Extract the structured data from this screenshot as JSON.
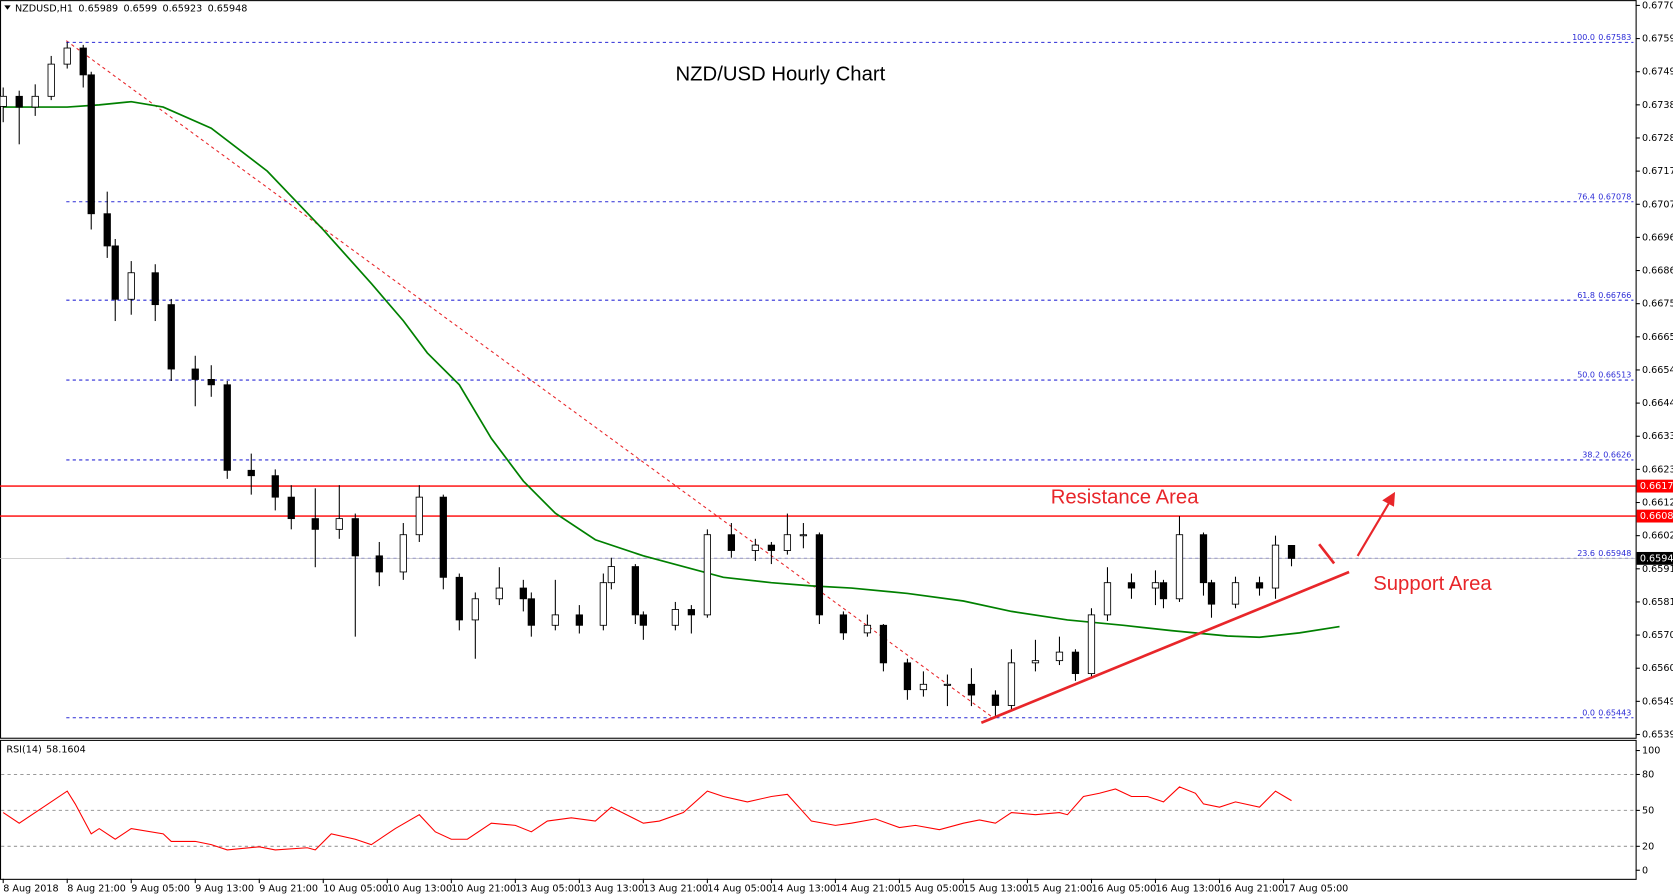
{
  "header": {
    "symbol": "NZDUSD,H1",
    "ohlc": [
      0.65989,
      0.6599,
      0.65923,
      0.65948
    ]
  },
  "chart_data": [
    {
      "type": "candlestick",
      "title": "NZD/USD Hourly Chart",
      "annotations": [
        "Resistance Area",
        "Support Area"
      ],
      "up_color": "#ffffff",
      "down_color": "#000000",
      "x": [
        0,
        2,
        4,
        6,
        8,
        10,
        11,
        13,
        14,
        16,
        19,
        21,
        24,
        26,
        28,
        31,
        34,
        36,
        39,
        42,
        44,
        47,
        50,
        52,
        55,
        57,
        59,
        62,
        65,
        66,
        69,
        72,
        75,
        76,
        79,
        80,
        84,
        86,
        88,
        91,
        94,
        96,
        98,
        100,
        102,
        105,
        108,
        110,
        113,
        115,
        118,
        121,
        124,
        126,
        129,
        132,
        134,
        136,
        138,
        141,
        144,
        145,
        147,
        150,
        151,
        154,
        157,
        159,
        161
      ],
      "open": [
        0.6738,
        0.67412,
        0.67378,
        0.67412,
        0.67514,
        0.67565,
        0.6748,
        0.6704,
        0.66938,
        0.66769,
        0.66853,
        0.66752,
        0.66548,
        0.66515,
        0.66498,
        0.66227,
        0.6621,
        0.66142,
        0.66074,
        0.6604,
        0.66074,
        0.65956,
        0.65905,
        0.66023,
        0.66142,
        0.65888,
        0.65753,
        0.6582,
        0.65854,
        0.6582,
        0.65736,
        0.65769,
        0.65736,
        0.65871,
        0.65922,
        0.65769,
        0.65736,
        0.65786,
        0.65769,
        0.66023,
        0.65973,
        0.6599,
        0.65973,
        0.66023,
        0.66023,
        0.65769,
        0.65712,
        0.65736,
        0.65617,
        0.65532,
        0.65549,
        0.65549,
        0.65515,
        0.65482,
        0.65617,
        0.65624,
        0.65651,
        0.65583,
        0.65769,
        0.65871,
        0.65854,
        0.65871,
        0.6582,
        0.66023,
        0.65871,
        0.65803,
        0.65871,
        0.65854,
        0.65989
      ],
      "high": [
        0.6744,
        0.6743,
        0.6745,
        0.6754,
        0.67583,
        0.67575,
        0.6749,
        0.6711,
        0.6696,
        0.6689,
        0.6688,
        0.6677,
        0.6659,
        0.6656,
        0.6651,
        0.6628,
        0.6623,
        0.6618,
        0.6617,
        0.6618,
        0.6609,
        0.66,
        0.6606,
        0.6618,
        0.6615,
        0.659,
        0.6584,
        0.6592,
        0.6588,
        0.6584,
        0.6588,
        0.658,
        0.659,
        0.6595,
        0.6593,
        0.6578,
        0.6581,
        0.658,
        0.6604,
        0.6606,
        0.6601,
        0.66,
        0.6609,
        0.6606,
        0.6603,
        0.6578,
        0.6577,
        0.6574,
        0.6563,
        0.6559,
        0.6558,
        0.656,
        0.6553,
        0.6566,
        0.6569,
        0.657,
        0.6566,
        0.6579,
        0.6592,
        0.659,
        0.6591,
        0.6588,
        0.66082,
        0.6603,
        0.6588,
        0.6589,
        0.6589,
        0.6602,
        0.6599
      ],
      "low": [
        0.6733,
        0.6726,
        0.6735,
        0.674,
        0.675,
        0.6744,
        0.6699,
        0.669,
        0.667,
        0.6672,
        0.667,
        0.6651,
        0.6643,
        0.6646,
        0.662,
        0.6615,
        0.661,
        0.6604,
        0.6592,
        0.6601,
        0.657,
        0.6586,
        0.6588,
        0.66,
        0.6585,
        0.6572,
        0.6563,
        0.658,
        0.6578,
        0.657,
        0.6572,
        0.6571,
        0.6572,
        0.6585,
        0.6574,
        0.6569,
        0.6572,
        0.6571,
        0.6576,
        0.6595,
        0.6594,
        0.6593,
        0.6596,
        0.6598,
        0.6574,
        0.6569,
        0.657,
        0.6559,
        0.655,
        0.6551,
        0.6548,
        0.6548,
        0.65443,
        0.6547,
        0.6559,
        0.6561,
        0.6556,
        0.6557,
        0.6575,
        0.6582,
        0.658,
        0.6579,
        0.6581,
        0.6583,
        0.6576,
        0.6579,
        0.6583,
        0.6582,
        0.65923
      ],
      "close": [
        0.67412,
        0.67378,
        0.67412,
        0.67514,
        0.67565,
        0.6748,
        0.6704,
        0.66938,
        0.66769,
        0.66853,
        0.66752,
        0.66548,
        0.66515,
        0.66498,
        0.66227,
        0.6621,
        0.66142,
        0.66074,
        0.6604,
        0.66074,
        0.65956,
        0.65905,
        0.66023,
        0.66142,
        0.65888,
        0.65753,
        0.6582,
        0.65854,
        0.6582,
        0.65736,
        0.65769,
        0.65736,
        0.65871,
        0.65922,
        0.65769,
        0.65736,
        0.65786,
        0.65769,
        0.66023,
        0.65973,
        0.6599,
        0.65973,
        0.66023,
        0.66023,
        0.65769,
        0.65712,
        0.65736,
        0.65617,
        0.65532,
        0.65549,
        0.65549,
        0.65515,
        0.65482,
        0.65617,
        0.65624,
        0.65651,
        0.65583,
        0.65769,
        0.65871,
        0.65854,
        0.65871,
        0.6582,
        0.66023,
        0.65871,
        0.65803,
        0.65871,
        0.65854,
        0.6599,
        0.65948
      ],
      "moving_average": {
        "color": "#008000",
        "x": [
          0,
          8,
          12,
          16,
          20,
          26,
          33,
          40,
          46,
          50,
          53,
          57,
          61,
          65,
          69,
          74,
          80,
          85,
          90,
          96,
          101,
          106,
          113,
          120,
          126,
          133,
          140,
          146,
          153,
          157,
          162,
          167
        ],
        "values": [
          0.67378,
          0.67378,
          0.67385,
          0.67395,
          0.67378,
          0.67311,
          0.67175,
          0.66989,
          0.66819,
          0.66701,
          0.66599,
          0.66498,
          0.66328,
          0.66193,
          0.66091,
          0.66007,
          0.65956,
          0.65922,
          0.65888,
          0.65871,
          0.65861,
          0.65854,
          0.65837,
          0.65813,
          0.6578,
          0.65753,
          0.65736,
          0.65719,
          0.65702,
          0.65698,
          0.65712,
          0.65732
        ]
      },
      "fib_color": "#2b2bd6",
      "fib_levels": [
        {
          "level": "100.0",
          "value": 0.67583
        },
        {
          "level": "76.4",
          "value": 0.67078
        },
        {
          "level": "61.8",
          "value": 0.66766
        },
        {
          "level": "50.0",
          "value": 0.66513
        },
        {
          "level": "38.2",
          "value": 0.6626
        },
        {
          "level": "23.6",
          "value": 0.65948
        },
        {
          "level": "0.0",
          "value": 0.65443
        }
      ],
      "hlines": [
        {
          "value": 0.66177,
          "color": "#ff0000"
        },
        {
          "value": 0.66082,
          "color": "#ff0000"
        }
      ],
      "current_price": 0.65948,
      "xlim": [
        0,
        204
      ],
      "ylim": [
        0.6539,
        0.677
      ],
      "yticks": [
        {
          "value": 0.677,
          "label": "0.67700"
        },
        {
          "value": 0.67595,
          "label": "0.67595"
        },
        {
          "value": 0.6749,
          "label": "0.67490"
        },
        {
          "value": 0.67385,
          "label": "0.67385"
        },
        {
          "value": 0.6728,
          "label": "0.67280"
        },
        {
          "value": 0.67175,
          "label": "0.67175"
        },
        {
          "value": 0.6707,
          "label": "0.67070"
        },
        {
          "value": 0.66965,
          "label": "0.66965"
        },
        {
          "value": 0.6686,
          "label": "0.66860"
        },
        {
          "value": 0.66755,
          "label": "0.66755"
        },
        {
          "value": 0.6665,
          "label": "0.66650"
        },
        {
          "value": 0.66545,
          "label": "0.66545"
        },
        {
          "value": 0.6644,
          "label": "0.66440"
        },
        {
          "value": 0.66335,
          "label": "0.66335"
        },
        {
          "value": 0.6623,
          "label": "0.66230"
        },
        {
          "value": 0.66125,
          "label": "0.66125"
        },
        {
          "value": 0.6602,
          "label": "0.66020"
        },
        {
          "value": 0.65915,
          "label": "0.65915"
        },
        {
          "value": 0.6581,
          "label": "0.65810"
        },
        {
          "value": 0.65705,
          "label": "0.65705"
        },
        {
          "value": 0.656,
          "label": "0.65600"
        },
        {
          "value": 0.65495,
          "label": "0.65495"
        },
        {
          "value": 0.6539,
          "label": "0.65390"
        }
      ],
      "xticks": [
        {
          "value": 0,
          "label": "8 Aug 2018"
        },
        {
          "value": 8,
          "label": "8 Aug 21:00"
        },
        {
          "value": 16,
          "label": "9 Aug 05:00"
        },
        {
          "value": 24,
          "label": "9 Aug 13:00"
        },
        {
          "value": 32,
          "label": "9 Aug 21:00"
        },
        {
          "value": 40,
          "label": "10 Aug 05:00"
        },
        {
          "value": 48,
          "label": "10 Aug 13:00"
        },
        {
          "value": 56,
          "label": "10 Aug 21:00"
        },
        {
          "value": 64,
          "label": "13 Aug 05:00"
        },
        {
          "value": 72,
          "label": "13 Aug 13:00"
        },
        {
          "value": 80,
          "label": "13 Aug 21:00"
        },
        {
          "value": 88,
          "label": "14 Aug 05:00"
        },
        {
          "value": 96,
          "label": "14 Aug 13:00"
        },
        {
          "value": 104,
          "label": "14 Aug 21:00"
        },
        {
          "value": 112,
          "label": "15 Aug 05:00"
        },
        {
          "value": 120,
          "label": "15 Aug 13:00"
        },
        {
          "value": 128,
          "label": "15 Aug 21:00"
        },
        {
          "value": 136,
          "label": "16 Aug 05:00"
        },
        {
          "value": 144,
          "label": "16 Aug 13:00"
        },
        {
          "value": 152,
          "label": "16 Aug 21:00"
        },
        {
          "value": 160,
          "label": "17 Aug 05:00"
        }
      ]
    },
    {
      "type": "line",
      "name": "RSI(14)",
      "last": 58.1604,
      "color": "#ff0000",
      "x": [
        0,
        2,
        5,
        8,
        9,
        11,
        12,
        14,
        16,
        20,
        21,
        24,
        26,
        28,
        32,
        34,
        38,
        39,
        41,
        44,
        46,
        49,
        52,
        54,
        56,
        58,
        61,
        64,
        66,
        68,
        71,
        74,
        76,
        80,
        82,
        85,
        88,
        90,
        93,
        96,
        98,
        101,
        104,
        106,
        109,
        112,
        114,
        117,
        120,
        122,
        124,
        126,
        129,
        132,
        133,
        135,
        137,
        139,
        141,
        143,
        145,
        147,
        149,
        150,
        152,
        154,
        157,
        159,
        161
      ],
      "values": [
        48.2,
        39.3,
        52.7,
        66.1,
        55.4,
        30.4,
        34.8,
        25.9,
        34.8,
        30.4,
        24.1,
        24.1,
        21.4,
        17.0,
        19.6,
        17.0,
        18.8,
        17.0,
        30.4,
        25.9,
        21.4,
        34.8,
        46.4,
        32.1,
        25.9,
        25.9,
        39.3,
        37.5,
        32.1,
        41.1,
        43.8,
        41.1,
        52.7,
        39.3,
        41.1,
        48.2,
        66.1,
        61.6,
        57.1,
        61.6,
        63.4,
        41.1,
        37.5,
        39.3,
        42.9,
        35.7,
        37.5,
        33.9,
        39.3,
        42.0,
        39.3,
        48.2,
        46.4,
        48.2,
        46.4,
        61.6,
        64.3,
        67.9,
        61.6,
        61.6,
        57.1,
        69.6,
        64.3,
        55.4,
        52.7,
        57.1,
        52.7,
        66.1,
        58.1604
      ],
      "levels": [
        80,
        50,
        20
      ],
      "xlim": [
        0,
        204
      ],
      "ylim": [
        0,
        100
      ],
      "yticks": [
        100,
        80,
        50,
        20,
        0
      ]
    }
  ]
}
